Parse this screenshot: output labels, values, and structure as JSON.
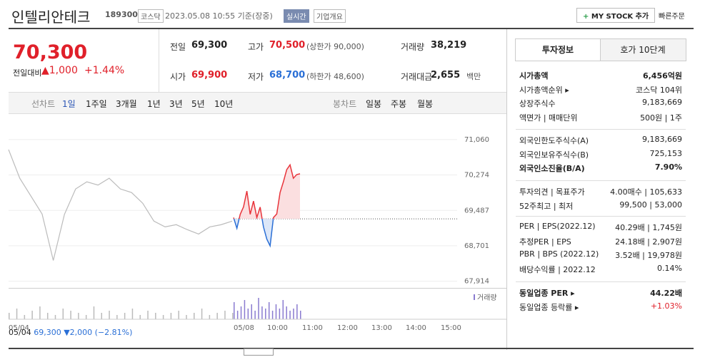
{
  "header": {
    "name": "인텔리안테크",
    "code": "189300",
    "market": "코스닥",
    "timestamp": "2023.05.08 10:55 기준(장중)",
    "realtime": "실시간",
    "company_info": "기업개요",
    "mystock_button": "MY STOCK 추가",
    "quick_order": "빠른주문"
  },
  "price": {
    "current": "70,300",
    "change_label": "전일대비",
    "change": "▲1,000",
    "change_rate": "+1.44%"
  },
  "summary": [
    [
      {
        "label": "전일",
        "value": "69,300"
      },
      {
        "label": "고가",
        "value": "70,500",
        "extra": "(상한가 90,000)"
      },
      {
        "label": "거래량",
        "value": "38,219"
      }
    ],
    [
      {
        "label": "시가",
        "value": "69,900"
      },
      {
        "label": "저가",
        "value": "68,700",
        "extra": "(하한가 48,600)"
      },
      {
        "label": "거래대금",
        "value": "2,655",
        "extra": "백만"
      }
    ]
  ],
  "tabs": {
    "line_chart": "선차트",
    "periods": [
      "1일",
      "1주일",
      "3개월",
      "1년",
      "3년",
      "5년",
      "10년"
    ],
    "candle_chart": "봉차트",
    "candle_periods": [
      "일봉",
      "주봉",
      "월봉"
    ]
  },
  "chart_data": {
    "type": "line",
    "ylim": [
      67750,
      71280
    ],
    "yticks": [
      {
        "value": 71060,
        "label": "71,060"
      },
      {
        "value": 70274,
        "label": "70,274"
      },
      {
        "value": 69487,
        "label": "69,487"
      },
      {
        "value": 68701,
        "label": "68,701"
      },
      {
        "value": 67914,
        "label": "67,914"
      }
    ],
    "reference": 69300,
    "series": [
      {
        "color": "#bbbbbb",
        "values": [
          70838,
          70202,
          69805,
          69407,
          68375,
          69400,
          69964,
          70122,
          70050,
          70202,
          69964,
          69884,
          69646,
          69249,
          69121,
          69170,
          69058,
          68962,
          69120,
          69169,
          69249
        ]
      },
      {
        "color": "#e8343b",
        "down_color": "#2a6fd6",
        "values": [
          69328,
          69090,
          69400,
          69566,
          69916,
          69400,
          69694,
          69328,
          69560,
          69121,
          68851,
          68700,
          69328,
          69407,
          69884,
          70122,
          70393,
          70500,
          70202,
          70282,
          70300
        ]
      }
    ],
    "x_labels": [
      "05/04",
      "05/08",
      "10:00",
      "11:00",
      "12:00",
      "13:00",
      "14:00",
      "15:00"
    ],
    "volume_label": "거래량",
    "volume": [
      [
        3,
        5,
        2,
        4,
        6,
        3,
        2,
        5,
        4,
        3,
        2,
        6,
        3,
        4,
        2,
        3,
        5,
        2,
        4,
        3,
        2,
        3,
        4,
        2,
        3,
        5,
        2,
        3,
        4,
        3
      ],
      [
        8,
        4,
        6,
        9,
        5,
        7,
        4,
        10,
        6,
        5,
        8,
        4,
        7,
        5,
        9,
        6,
        4,
        5,
        7,
        4
      ]
    ]
  },
  "footer": {
    "date": "05/04",
    "price": "69,300",
    "change": "▼2,000",
    "change_rate": "(−2.81%)"
  },
  "side_tabs": [
    "투자정보",
    "호가 10단계"
  ],
  "side_groups": [
    [
      {
        "label": "시가총액",
        "value": "6,456억원",
        "style": "bold"
      },
      {
        "label": "시가총액순위 ▸",
        "value": "코스닥 104위"
      },
      {
        "label": "상장주식수",
        "value": "9,183,669"
      },
      {
        "label": "액면가 | 매매단위",
        "value": "500원 | 1주"
      }
    ],
    [
      {
        "label": "외국인한도주식수(A)",
        "value": "9,183,669"
      },
      {
        "label": "외국인보유주식수(B)",
        "value": "725,153"
      },
      {
        "label": "외국인소진율(B/A)",
        "value": "7.90%",
        "style": "bold"
      }
    ],
    [
      {
        "label": "투자의견 | 목표주가",
        "value": "4.00매수 | 105,633"
      },
      {
        "label": "52주최고 | 최저",
        "value": "99,500 | 53,000"
      }
    ],
    [
      {
        "label": "PER | EPS(2022.12)",
        "value": "40.29배 | 1,745원"
      },
      {
        "label": "추정PER | EPS",
        "value": "24.18배 | 2,907원"
      },
      {
        "label": "PBR | BPS (2022.12)",
        "value": "3.52배 | 19,978원"
      },
      {
        "label": "배당수익률 | 2022.12",
        "value": "0.14%"
      }
    ],
    [
      {
        "label": "동일업종 PER ▸",
        "value": "44.22배",
        "style": "bold"
      },
      {
        "label": "동일업종 등락률 ▸",
        "value": "+1.03%",
        "style": "red"
      }
    ]
  ]
}
